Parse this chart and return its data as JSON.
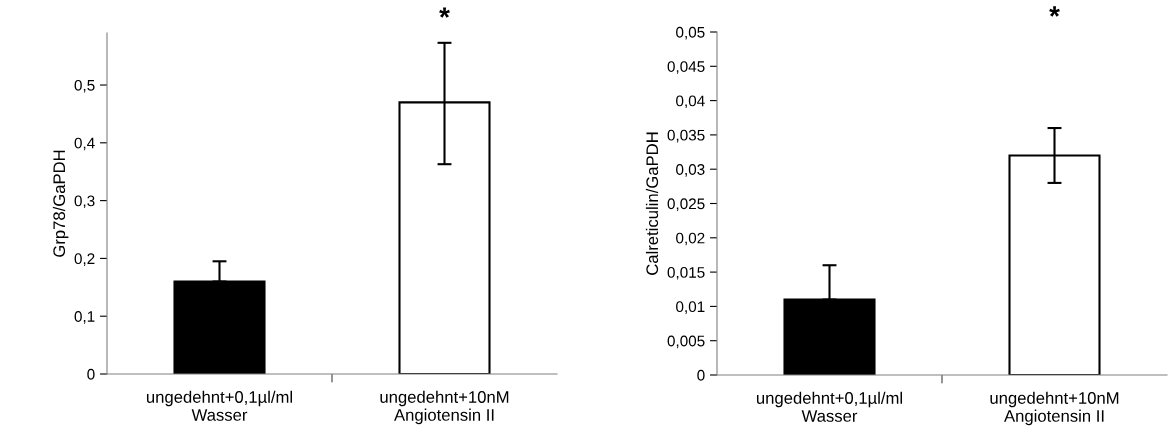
{
  "chart_data": [
    {
      "type": "bar",
      "ylabel": "Grp78/GaPDH",
      "categories": [
        "ungedehnt+0,1µl/ml\nWasser",
        "ungedehnt+10nM\nAngiotensin II"
      ],
      "values": [
        0.16,
        0.47
      ],
      "colors": [
        "#000000",
        "#ffffff"
      ],
      "errors": [
        [
          0.16,
          0.195
        ],
        [
          0.363,
          0.573
        ]
      ],
      "ylim": [
        0,
        0.59
      ],
      "yticks": [
        0,
        {
          "value": 0.1,
          "label": "0,1"
        },
        {
          "value": 0.2,
          "label": "0,2"
        },
        {
          "value": 0.3,
          "label": "0,3"
        },
        {
          "value": 0.4,
          "label": "0,4"
        },
        {
          "value": 0.5,
          "label": "0,5"
        }
      ],
      "grid": false,
      "annotations": [
        "*"
      ]
    },
    {
      "type": "bar",
      "ylabel": "Calreticulin/GaPDH",
      "categories": [
        "ungedehnt+0,1µl/ml\nWasser",
        "ungedehnt+10nM\nAngiotensin II"
      ],
      "values": [
        0.011,
        0.032
      ],
      "colors": [
        "#000000",
        "#ffffff"
      ],
      "errors": [
        [
          0.011,
          0.016
        ],
        [
          0.028,
          0.036
        ]
      ],
      "ylim": [
        0,
        0.05
      ],
      "yticks": [
        0,
        {
          "value": 0.005,
          "label": "0,005"
        },
        {
          "value": 0.01,
          "label": "0,01"
        },
        {
          "value": 0.015,
          "label": "0,015"
        },
        {
          "value": 0.02,
          "label": "0,02"
        },
        {
          "value": 0.025,
          "label": "0,025"
        },
        {
          "value": 0.03,
          "label": "0,03"
        },
        {
          "value": 0.035,
          "label": "0,035"
        },
        {
          "value": 0.04,
          "label": "0,04"
        },
        {
          "value": 0.045,
          "label": "0,045"
        },
        {
          "value": 0.05,
          "label": "0,05"
        }
      ],
      "grid": false,
      "annotations": [
        "*"
      ]
    }
  ]
}
